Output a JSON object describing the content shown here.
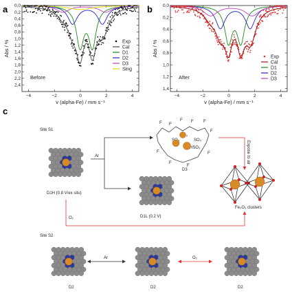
{
  "panel_letters": {
    "a": "a",
    "b": "b",
    "c": "c"
  },
  "chart_data": [
    {
      "type": "scatter",
      "id": "before",
      "title": "",
      "annotation": "Before",
      "xlabel": "v (alpha-Fe) / mm s⁻¹",
      "ylabel": "Abs / %",
      "xlim": [
        -4.5,
        4.5
      ],
      "ylim": [
        0,
        2.6
      ],
      "y_reversed": true,
      "xticks": [
        -4,
        -2,
        0,
        2,
        4
      ],
      "yticks": [
        "0,0",
        "0,2",
        "0,4",
        "0,6",
        "0,8",
        "1,0",
        "1,2",
        "1,4",
        "1,6",
        "1,8",
        "2,0",
        "2,2",
        "2,4"
      ],
      "legend": [
        {
          "name": "Exp",
          "color": "#000000",
          "marker": "dot"
        },
        {
          "name": "Cal",
          "color": "#444444"
        },
        {
          "name": "D1",
          "color": "#1a8a1a"
        },
        {
          "name": "D2",
          "color": "#2222cc"
        },
        {
          "name": "D3",
          "color": "#bb44bb"
        },
        {
          "name": "Sing",
          "color": "#d8d800"
        }
      ],
      "components": [
        {
          "name": "D1",
          "color": "#1a8a1a",
          "center": 0.45,
          "split": 0.95,
          "depth": 1.2,
          "width": 0.35
        },
        {
          "name": "D2",
          "color": "#2222cc",
          "center": 0.55,
          "split": 2.3,
          "depth": 0.55,
          "width": 0.45
        },
        {
          "name": "D3",
          "color": "#bb44bb",
          "center": 0.3,
          "split": 3.3,
          "depth": 0.2,
          "width": 0.6
        },
        {
          "name": "Sing",
          "color": "#d8d800",
          "center": 0.0,
          "split": 0,
          "depth": 0.12,
          "width": 1.2
        }
      ]
    },
    {
      "type": "scatter",
      "id": "after",
      "title": "",
      "annotation": "After",
      "xlabel": "v (alpha-Fe) / mm s⁻¹",
      "ylabel": "Abs / %",
      "xlim": [
        -4.5,
        4.5
      ],
      "ylim": [
        0,
        1.45
      ],
      "y_reversed": true,
      "xticks": [
        -4,
        -2,
        0,
        2,
        4
      ],
      "yticks": [
        "0,0",
        "0,2",
        "0,4",
        "0,6",
        "0,8",
        "1,0",
        "1,2",
        "1,4"
      ],
      "legend": [
        {
          "name": "Exp",
          "color": "#e03030",
          "marker": "dot"
        },
        {
          "name": "Cal",
          "color": "#b01010"
        },
        {
          "name": "D1",
          "color": "#1a8a1a"
        },
        {
          "name": "D2",
          "color": "#2222cc"
        },
        {
          "name": "D3",
          "color": "#bb44bb"
        }
      ],
      "components": [
        {
          "name": "D1",
          "color": "#1a8a1a",
          "center": 0.45,
          "split": 0.95,
          "depth": 0.6,
          "width": 0.35
        },
        {
          "name": "D2",
          "color": "#2222cc",
          "center": 0.5,
          "split": 2.3,
          "depth": 0.38,
          "width": 0.45
        },
        {
          "name": "D3",
          "color": "#bb44bb",
          "center": 0.2,
          "split": 3.2,
          "depth": 0.17,
          "width": 0.65
        }
      ]
    }
  ],
  "diagram": {
    "site_s1": "Site S1",
    "site_s2": "Site S2",
    "d1h": "D1H (0.8 V/ex situ)",
    "d1l": "D1L (0.2 V)",
    "d3": "D3",
    "fe2o3": "Fe₂O₃ clusters",
    "expose": "Expose to air",
    "ar1": "Ar",
    "o2_1": "O₂",
    "ar2": "Ar",
    "o2_2": "O₂",
    "d2_1": "D2",
    "d2_2": "D2",
    "d2_3": "D2",
    "f_labels": [
      "F",
      "F",
      "F",
      "F",
      "F",
      "F",
      "F",
      "F",
      "F",
      "F"
    ],
    "so3": [
      "SO₃",
      "SO₃",
      "SO₃",
      "HSO₃"
    ]
  }
}
